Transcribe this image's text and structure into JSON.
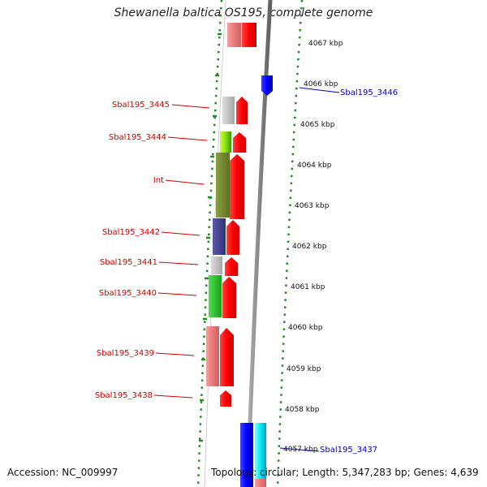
{
  "title": "Shewanella baltica OS195, complete genome",
  "accession": "Accession: NC_009997",
  "topology": "Topology: circular; Length: 5,347,283 bp; Genes: 4,639",
  "colors": {
    "backbone": "#888888",
    "forward_arrow": "#ee0000",
    "reverse_arrow": "#0000ee",
    "tick": "#228b22",
    "label_forward": "#d40000",
    "label_reverse": "#0000b0"
  },
  "kbp_labels": [
    "4067 kbp",
    "4066 kbp",
    "4065 kbp",
    "4064 kbp",
    "4063 kbp",
    "4062 kbp",
    "4061 kbp",
    "4060 kbp",
    "4059 kbp",
    "4058 kbp",
    "4057 kbp"
  ],
  "gene_labels": {
    "sbal3446": "Sbal195_3446",
    "sbal3445": "Sbal195_3445",
    "sbal3444": "Sbal195_3444",
    "int": "Int",
    "sbal3442": "Sbal195_3442",
    "sbal3441": "Sbal195_3441",
    "sbal3440": "Sbal195_3440",
    "sbal3439": "Sbal195_3439",
    "sbal3438": "Sbal195_3438",
    "sbal3437": "Sbal195_3437"
  }
}
